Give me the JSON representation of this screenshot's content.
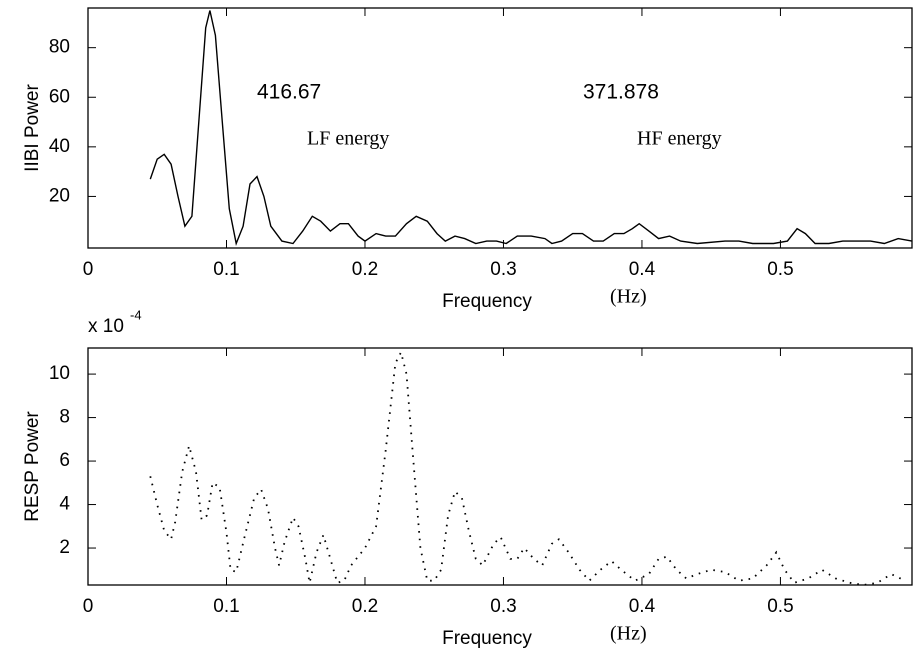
{
  "chart_data": [
    {
      "type": "line",
      "ylabel": "IIBI Power",
      "xlabel": "Frequency",
      "xunit": "(Hz)",
      "annotations": [
        "416.67",
        "371.878",
        "LF energy",
        "HF energy"
      ],
      "color": "#000000",
      "linestyle": "solid",
      "x": [
        0.045,
        0.05,
        0.055,
        0.06,
        0.065,
        0.07,
        0.075,
        0.08,
        0.085,
        0.088,
        0.092,
        0.097,
        0.102,
        0.107,
        0.112,
        0.117,
        0.122,
        0.127,
        0.132,
        0.14,
        0.148,
        0.155,
        0.162,
        0.168,
        0.175,
        0.182,
        0.188,
        0.195,
        0.2,
        0.208,
        0.215,
        0.222,
        0.23,
        0.237,
        0.245,
        0.252,
        0.258,
        0.265,
        0.272,
        0.28,
        0.288,
        0.295,
        0.302,
        0.31,
        0.32,
        0.33,
        0.335,
        0.342,
        0.35,
        0.357,
        0.365,
        0.372,
        0.38,
        0.387,
        0.393,
        0.398,
        0.405,
        0.412,
        0.42,
        0.428,
        0.44,
        0.46,
        0.47,
        0.48,
        0.495,
        0.505,
        0.512,
        0.518,
        0.525,
        0.535,
        0.545,
        0.555,
        0.565,
        0.575,
        0.585,
        0.595
      ],
      "values": [
        27,
        35,
        37,
        33,
        20,
        8,
        12,
        50,
        88,
        95,
        85,
        50,
        15,
        1,
        8,
        25,
        28,
        20,
        8,
        2,
        1,
        6,
        12,
        10,
        6,
        9,
        9,
        4,
        2,
        5,
        4,
        4,
        9,
        12,
        10,
        5,
        2,
        4,
        3,
        1,
        2,
        2,
        1,
        4,
        4,
        3,
        1,
        2,
        5,
        5,
        2,
        2,
        5,
        5,
        7,
        9,
        6,
        3,
        4,
        2,
        1,
        2,
        2,
        1,
        1,
        2,
        7,
        5,
        1,
        1,
        2,
        2,
        2,
        1,
        3,
        2
      ],
      "xlim": [
        0,
        0.595
      ],
      "ylim": [
        -0.8,
        96
      ],
      "xticks": [
        0,
        0.1,
        0.2,
        0.3,
        0.4,
        0.5
      ],
      "yticks": [
        20,
        40,
        60,
        80
      ]
    },
    {
      "type": "line",
      "ylabel": "RESP Power",
      "xlabel": "Frequency",
      "xunit": "(Hz)",
      "scale_label": "x 10",
      "scale_exponent": "-4",
      "color": "#000000",
      "linestyle": "dotted",
      "x": [
        0.045,
        0.05,
        0.055,
        0.06,
        0.063,
        0.068,
        0.073,
        0.078,
        0.082,
        0.086,
        0.09,
        0.095,
        0.1,
        0.103,
        0.107,
        0.113,
        0.12,
        0.125,
        0.13,
        0.135,
        0.138,
        0.142,
        0.148,
        0.152,
        0.157,
        0.16,
        0.165,
        0.17,
        0.175,
        0.18,
        0.185,
        0.19,
        0.2,
        0.208,
        0.215,
        0.222,
        0.226,
        0.23,
        0.235,
        0.24,
        0.245,
        0.25,
        0.255,
        0.26,
        0.265,
        0.27,
        0.275,
        0.28,
        0.285,
        0.293,
        0.298,
        0.305,
        0.31,
        0.315,
        0.322,
        0.328,
        0.335,
        0.34,
        0.347,
        0.355,
        0.362,
        0.37,
        0.378,
        0.385,
        0.395,
        0.405,
        0.412,
        0.418,
        0.425,
        0.432,
        0.44,
        0.45,
        0.46,
        0.47,
        0.48,
        0.49,
        0.497,
        0.503,
        0.51,
        0.52,
        0.53,
        0.54,
        0.55,
        0.56,
        0.57,
        0.58,
        0.59
      ],
      "values": [
        5.3,
        4.0,
        2.8,
        2.4,
        3.2,
        5.5,
        6.7,
        5.5,
        3.3,
        3.5,
        5.0,
        4.8,
        2.7,
        1.0,
        0.9,
        2.5,
        4.3,
        4.7,
        3.8,
        2.0,
        1.2,
        2.3,
        3.4,
        3.0,
        1.5,
        0.4,
        1.8,
        2.6,
        1.5,
        0.4,
        0.5,
        1.2,
        2.0,
        3.0,
        6.5,
        10.5,
        11.0,
        10.0,
        6.0,
        2.0,
        0.5,
        0.5,
        1.0,
        3.5,
        4.6,
        4.3,
        2.8,
        1.5,
        1.2,
        2.2,
        2.5,
        1.5,
        1.5,
        2.0,
        1.5,
        1.2,
        2.2,
        2.4,
        1.8,
        1.0,
        0.5,
        1.0,
        1.4,
        1.0,
        0.5,
        0.8,
        1.5,
        1.6,
        1.0,
        0.6,
        0.8,
        1.0,
        0.9,
        0.5,
        0.6,
        1.2,
        1.8,
        1.0,
        0.4,
        0.6,
        1.0,
        0.6,
        0.4,
        0.3,
        0.4,
        0.8,
        0.5
      ],
      "xlim": [
        0,
        0.595
      ],
      "ylim": [
        0.3,
        11.2
      ],
      "xticks": [
        0,
        0.1,
        0.2,
        0.3,
        0.4,
        0.5
      ],
      "yticks": [
        2,
        4,
        6,
        8,
        10
      ]
    }
  ]
}
